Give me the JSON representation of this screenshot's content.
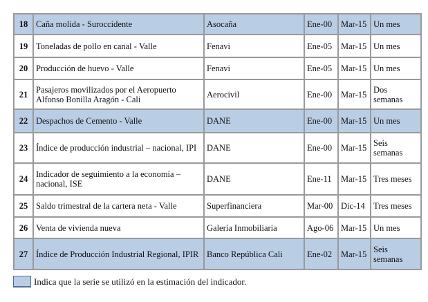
{
  "highlight_color": "#b9cde5",
  "rows": [
    {
      "num": "18",
      "name": "Caña molida - Suroccidente",
      "source": "Asocaña",
      "start": "Ene-00",
      "end": "Mar-15",
      "freq": "Un mes",
      "highlight": true
    },
    {
      "num": "19",
      "name": "Toneladas de pollo en canal - Valle",
      "source": "Fenavi",
      "start": "Ene-05",
      "end": "Mar-15",
      "freq": "Un mes",
      "highlight": false
    },
    {
      "num": "20",
      "name": "Producción de huevo - Valle",
      "source": "Fenavi",
      "start": "Ene-05",
      "end": "Mar-15",
      "freq": "Un mes",
      "highlight": false
    },
    {
      "num": "21",
      "name": "Pasajeros movilizados por el Aeropuerto Alfonso Bonilla Aragón  - Cali",
      "source": "Aerocivil",
      "start": "Ene-00",
      "end": "Mar-15",
      "freq": "Dos semanas",
      "highlight": false
    },
    {
      "num": "22",
      "name": "Despachos de Cemento - Valle",
      "source": "DANE",
      "start": "Ene-00",
      "end": "Mar-15",
      "freq": "Un mes",
      "highlight": true
    },
    {
      "num": "23",
      "name": "Índice de producción industrial – nacional, IPI",
      "source": "DANE",
      "start": "Ene-00",
      "end": "Mar-15",
      "freq": "Seis semanas",
      "highlight": false
    },
    {
      "num": "24",
      "name": "Indicador de seguimiento a la economía – nacional, ISE",
      "source": "DANE",
      "start": "Ene-11",
      "end": "Mar-15",
      "freq": "Tres meses",
      "highlight": false
    },
    {
      "num": "25",
      "name": "Saldo trimestral de la cartera neta - Valle",
      "source": "Superfinanciera",
      "start": "Mar-00",
      "end": "Dic-14",
      "freq": "Tres meses",
      "highlight": false
    },
    {
      "num": "26",
      "name": "Venta de vivienda nueva",
      "source": "Galería Inmobiliaria",
      "start": "Ago-06",
      "end": "Mar-15",
      "freq": "Un mes",
      "highlight": false
    },
    {
      "num": "27",
      "name": "Índice de Producción Industrial Regional, IPIR",
      "source": "Banco República Cali",
      "start": "Ene-02",
      "end": "Mar-15",
      "freq": "Seis semanas",
      "highlight": true
    }
  ],
  "legend": {
    "text": "Indica que la serie se utilizó en la estimación del indicador."
  }
}
